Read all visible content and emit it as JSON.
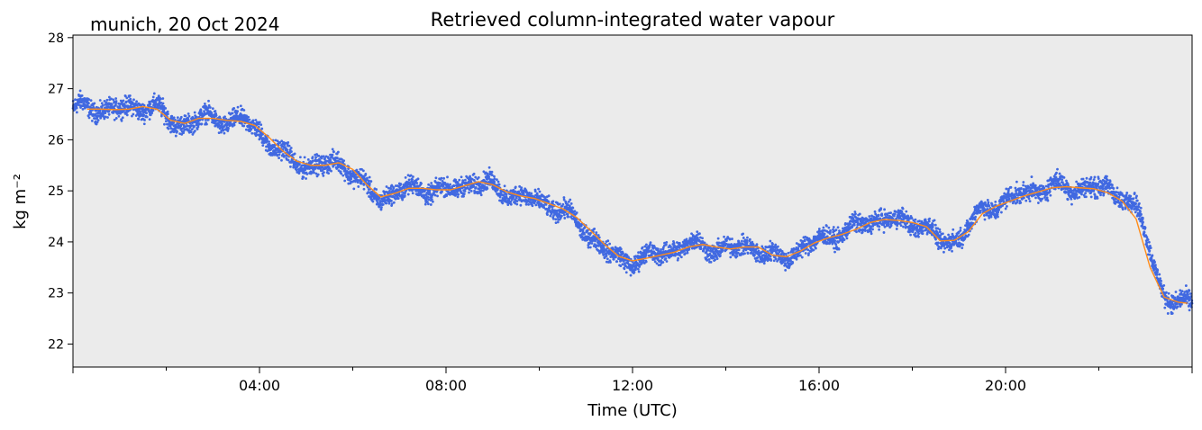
{
  "chart_data": {
    "type": "scatter",
    "title": "Retrieved column-integrated water vapour",
    "corner_label": "munich, 20 Oct 2024",
    "xlabel": "Time (UTC)",
    "ylabel": "kg m⁻²",
    "xlim": [
      0,
      24
    ],
    "ylim": [
      21.55,
      28.05
    ],
    "xticks": [
      {
        "value": 4,
        "label": "04:00"
      },
      {
        "value": 8,
        "label": "08:00"
      },
      {
        "value": 12,
        "label": "12:00"
      },
      {
        "value": 16,
        "label": "16:00"
      },
      {
        "value": 20,
        "label": "20:00"
      }
    ],
    "yticks": [
      {
        "value": 22,
        "label": "22"
      },
      {
        "value": 23,
        "label": "23"
      },
      {
        "value": 24,
        "label": "24"
      },
      {
        "value": 25,
        "label": "25"
      },
      {
        "value": 26,
        "label": "26"
      },
      {
        "value": 27,
        "label": "27"
      },
      {
        "value": 28,
        "label": "28"
      }
    ],
    "grid": false,
    "background_color": "#ebebeb",
    "series": [
      {
        "kind": "scatter",
        "color": "#4169e1",
        "spread": 0.18,
        "x": [
          0,
          0.2,
          0.4,
          0.6,
          0.8,
          1.0,
          1.2,
          1.4,
          1.6,
          1.8,
          2.0,
          2.2,
          2.4,
          2.6,
          2.8,
          3.0,
          3.2,
          3.4,
          3.6,
          3.8,
          4.0,
          4.2,
          4.4,
          4.6,
          4.8,
          5.0,
          5.2,
          5.4,
          5.6,
          5.8,
          6.0,
          6.2,
          6.4,
          6.6,
          6.8,
          7.0,
          7.2,
          7.4,
          7.6,
          7.8,
          8.0,
          8.2,
          8.4,
          8.6,
          8.8,
          9.0,
          9.2,
          9.4,
          9.6,
          9.8,
          10.0,
          10.2,
          10.4,
          10.6,
          10.8,
          11.0,
          11.2,
          11.4,
          11.6,
          11.8,
          12.0,
          12.2,
          12.4,
          12.6,
          12.8,
          13.0,
          13.2,
          13.4,
          13.6,
          13.8,
          14.0,
          14.2,
          14.4,
          14.6,
          14.8,
          15.0,
          15.2,
          15.4,
          15.6,
          15.8,
          16.0,
          16.2,
          16.4,
          16.6,
          16.8,
          17.0,
          17.2,
          17.4,
          17.6,
          17.8,
          18.0,
          18.2,
          18.4,
          18.6,
          18.8,
          19.0,
          19.2,
          19.4,
          19.6,
          19.8,
          20.0,
          20.2,
          20.4,
          20.6,
          20.8,
          21.0,
          21.2,
          21.4,
          21.6,
          21.8,
          22.0,
          22.2,
          22.4,
          22.6,
          22.8,
          23.0,
          23.2,
          23.4,
          23.6,
          23.8,
          24.0
        ],
        "y": [
          26.6,
          26.65,
          26.62,
          26.58,
          26.6,
          26.62,
          26.6,
          26.62,
          26.68,
          26.62,
          26.45,
          26.3,
          26.3,
          26.38,
          26.43,
          26.42,
          26.38,
          26.35,
          26.38,
          26.32,
          26.15,
          25.95,
          25.8,
          25.65,
          25.55,
          25.5,
          25.48,
          25.5,
          25.55,
          25.52,
          25.35,
          25.15,
          24.95,
          24.85,
          24.92,
          25.0,
          25.05,
          25.05,
          25.02,
          25.02,
          25.0,
          25.05,
          25.1,
          25.18,
          25.15,
          25.1,
          25.0,
          24.92,
          24.88,
          24.85,
          24.78,
          24.72,
          24.65,
          24.55,
          24.4,
          24.2,
          24.05,
          23.85,
          23.72,
          23.65,
          23.62,
          23.68,
          23.72,
          23.78,
          23.82,
          23.88,
          23.95,
          23.95,
          23.9,
          23.85,
          23.85,
          23.88,
          23.92,
          23.88,
          23.78,
          23.72,
          23.7,
          23.75,
          23.85,
          23.95,
          24.05,
          24.1,
          24.15,
          24.2,
          24.3,
          24.38,
          24.42,
          24.45,
          24.42,
          24.4,
          24.38,
          24.35,
          24.2,
          24.0,
          24.0,
          24.1,
          24.3,
          24.55,
          24.65,
          24.72,
          24.8,
          24.9,
          24.95,
          25.0,
          25.05,
          25.1,
          25.08,
          25.05,
          25.05,
          25.08,
          25.05,
          25.02,
          24.95,
          24.85,
          24.65,
          24.2,
          23.5,
          22.95,
          22.8,
          22.8,
          22.82
        ]
      },
      {
        "kind": "line",
        "color": "#ff8c1a",
        "x": [
          0.3,
          0.6,
          0.9,
          1.2,
          1.5,
          1.8,
          2.1,
          2.4,
          2.7,
          3.0,
          3.3,
          3.6,
          3.9,
          4.2,
          4.5,
          4.8,
          5.1,
          5.4,
          5.7,
          6.0,
          6.3,
          6.6,
          6.9,
          7.2,
          7.5,
          7.8,
          8.1,
          8.4,
          8.7,
          9.0,
          9.3,
          9.6,
          9.9,
          10.2,
          10.5,
          10.8,
          11.1,
          11.4,
          11.7,
          12.0,
          12.3,
          12.6,
          12.9,
          13.2,
          13.5,
          13.8,
          14.1,
          14.4,
          14.7,
          15.0,
          15.3,
          15.6,
          15.9,
          16.2,
          16.5,
          16.8,
          17.1,
          17.4,
          17.7,
          18.0,
          18.3,
          18.6,
          18.9,
          19.2,
          19.5,
          19.8,
          20.1,
          20.4,
          20.7,
          21.0,
          21.3,
          21.6,
          21.9,
          22.2,
          22.5,
          22.8,
          23.1,
          23.4,
          23.7,
          23.9
        ],
        "y": [
          26.6,
          26.6,
          26.59,
          26.6,
          26.65,
          26.6,
          26.38,
          26.32,
          26.42,
          26.42,
          26.38,
          26.36,
          26.28,
          26.05,
          25.78,
          25.58,
          25.5,
          25.5,
          25.55,
          25.42,
          25.12,
          24.88,
          24.95,
          25.05,
          25.05,
          25.02,
          25.02,
          25.1,
          25.18,
          25.12,
          24.98,
          24.9,
          24.85,
          24.75,
          24.65,
          24.48,
          24.22,
          23.95,
          23.72,
          23.63,
          23.68,
          23.74,
          23.8,
          23.9,
          23.95,
          23.9,
          23.86,
          23.9,
          23.9,
          23.74,
          23.71,
          23.82,
          23.98,
          24.08,
          24.15,
          24.25,
          24.38,
          24.44,
          24.42,
          24.38,
          24.3,
          24.02,
          24.03,
          24.2,
          24.55,
          24.7,
          24.8,
          24.9,
          24.98,
          25.06,
          25.08,
          25.06,
          25.04,
          24.96,
          24.8,
          24.45,
          23.5,
          22.92,
          22.82,
          22.8
        ]
      }
    ]
  }
}
